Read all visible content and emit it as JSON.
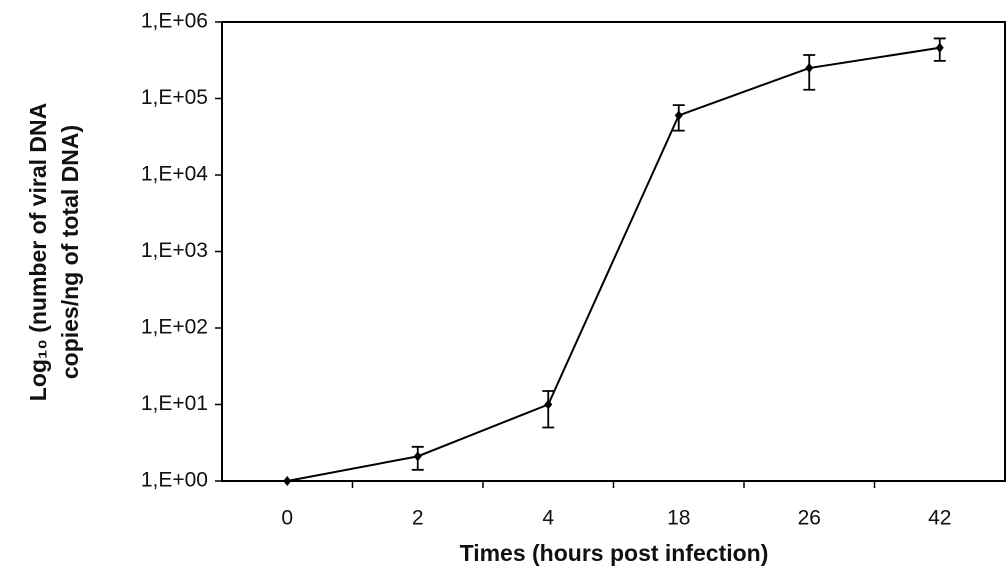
{
  "chart_data": {
    "type": "line",
    "x_label": "Times (hours post infection)",
    "y_label": [
      "Log₁₀ (number of viral DNA",
      "copies/ng of total DNA)"
    ],
    "categories": [
      "0",
      "2",
      "4",
      "18",
      "26",
      "42"
    ],
    "series": [
      {
        "color": "#000000",
        "values": [
          1,
          2.1,
          10,
          60000,
          250000,
          460000
        ],
        "errors": [
          0,
          0.7,
          5,
          22000,
          120000,
          150000
        ]
      }
    ],
    "log_scale": true,
    "ylim": [
      1,
      1000000
    ],
    "yticks": [
      {
        "value": 1,
        "label": "1,E+00"
      },
      {
        "value": 10,
        "label": "1,E+01"
      },
      {
        "value": 100,
        "label": "1,E+02"
      },
      {
        "value": 1000,
        "label": "1,E+03"
      },
      {
        "value": 10000,
        "label": "1,E+04"
      },
      {
        "value": 100000,
        "label": "1,E+05"
      },
      {
        "value": 1000000,
        "label": "1,E+06"
      }
    ],
    "grid": false
  }
}
